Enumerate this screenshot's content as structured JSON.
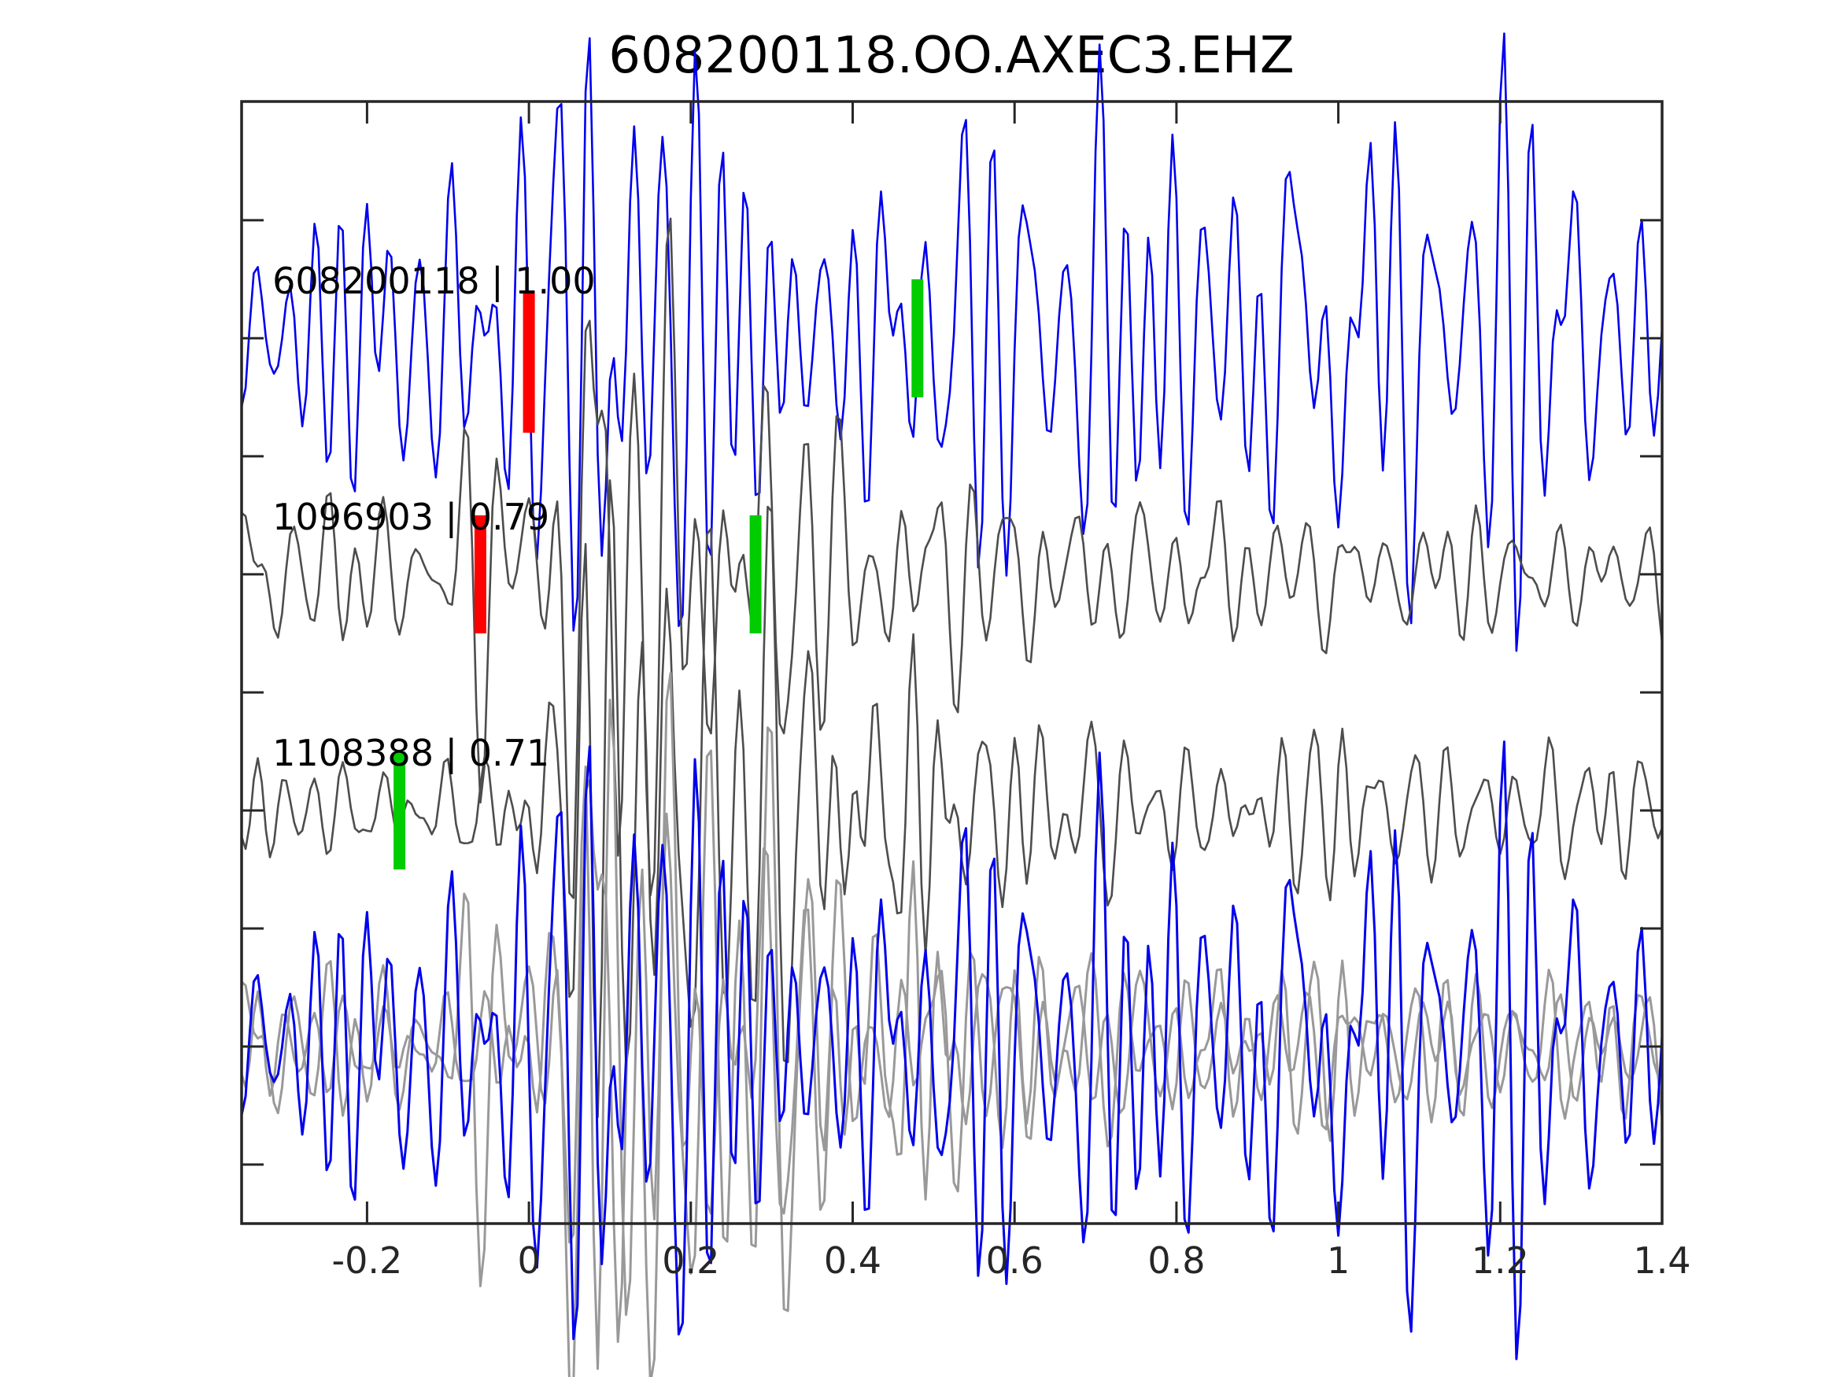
{
  "title": "608200118.OO.AXEC3.EHZ",
  "colors": {
    "background": "#ffffff",
    "frame": "#262626",
    "template_trace": "#0000ee",
    "match_trace": "#4d4d4d",
    "overlay_gray": "#999999",
    "pick_red": "#ff0000",
    "pick_green": "#00cc00",
    "text": "#000000"
  },
  "chart_data": {
    "type": "line",
    "title": "608200118.OO.AXEC3.EHZ",
    "xlabel": "",
    "ylabel": "",
    "grid": false,
    "legend": "none",
    "xlim": [
      -0.355,
      1.4
    ],
    "ylim": [
      0.25,
      5.003
    ],
    "x_ticks": [
      -0.2,
      0,
      0.2,
      0.4,
      0.6,
      0.8,
      1,
      1.2,
      1.4
    ],
    "x_tick_labels": [
      "-0.2",
      "0",
      "0.2",
      "0.4",
      "0.6",
      "0.8",
      "1",
      "1.2",
      "1.4"
    ],
    "y_ticks": [
      0.5,
      1,
      1.5,
      2,
      2.5,
      3,
      3.5,
      4,
      4.5
    ],
    "y_tick_labels": [
      "",
      "",
      "",
      "",
      "",
      "",
      "",
      "",
      ""
    ],
    "label_x": -0.317,
    "label_dy": 0.243,
    "traces": [
      {
        "id": "608200118",
        "label": "608200118 | 1.00",
        "correlation": 1.0,
        "color": "#0000ee",
        "center_y": 4,
        "seed": 101,
        "dt": 0.005,
        "freq_band": [
          7,
          46
        ],
        "freq_center": 27,
        "envelope": [
          [
            -0.36,
            0.26
          ],
          [
            -0.05,
            0.28
          ],
          [
            0.02,
            0.45
          ],
          [
            0.07,
            0.62
          ],
          [
            0.16,
            0.5
          ],
          [
            0.3,
            0.38
          ],
          [
            0.55,
            0.33
          ],
          [
            0.8,
            0.4
          ],
          [
            1.1,
            0.37
          ],
          [
            1.4,
            0.35
          ]
        ],
        "picks": [
          {
            "kind": "pick-red",
            "color": "#ff0000",
            "t": 0.0,
            "y_range": [
              3.6,
              4.2
            ]
          },
          {
            "kind": "pick-green",
            "color": "#00cc00",
            "t": 0.48,
            "y_range": [
              3.75,
              4.25
            ]
          }
        ]
      },
      {
        "id": "1096903",
        "label": "1096903 | 0.79",
        "correlation": 0.79,
        "color": "#4d4d4d",
        "center_y": 3,
        "seed": 202,
        "dt": 0.005,
        "freq_band": [
          6,
          42
        ],
        "freq_center": 24,
        "envelope": [
          [
            -0.36,
            0.12
          ],
          [
            -0.1,
            0.13
          ],
          [
            -0.04,
            0.3
          ],
          [
            0.05,
            0.55
          ],
          [
            0.12,
            0.52
          ],
          [
            0.25,
            0.4
          ],
          [
            0.4,
            0.28
          ],
          [
            0.6,
            0.18
          ],
          [
            0.8,
            0.13
          ],
          [
            1.1,
            0.1
          ],
          [
            1.4,
            0.09
          ]
        ],
        "picks": [
          {
            "kind": "pick-red",
            "color": "#ff0000",
            "t": -0.06,
            "y_range": [
              2.75,
              3.25
            ]
          },
          {
            "kind": "pick-green",
            "color": "#00cc00",
            "t": 0.28,
            "y_range": [
              2.75,
              3.25
            ]
          }
        ]
      },
      {
        "id": "1108388",
        "label": "1108388 | 0.71",
        "correlation": 0.71,
        "color": "#4d4d4d",
        "center_y": 2,
        "seed": 303,
        "dt": 0.005,
        "freq_band": [
          6,
          42
        ],
        "freq_center": 25,
        "envelope": [
          [
            -0.36,
            0.08
          ],
          [
            -0.05,
            0.09
          ],
          [
            0.03,
            0.3
          ],
          [
            0.1,
            0.6
          ],
          [
            0.2,
            0.5
          ],
          [
            0.35,
            0.33
          ],
          [
            0.55,
            0.22
          ],
          [
            0.8,
            0.15
          ],
          [
            1.1,
            0.12
          ],
          [
            1.4,
            0.1
          ]
        ],
        "picks": [
          {
            "kind": "pick-green",
            "color": "#00cc00",
            "t": -0.16,
            "y_range": [
              1.75,
              2.25
            ]
          }
        ]
      }
    ],
    "overlay": {
      "center_y": 1,
      "components": [
        {
          "ref": "1096903",
          "color": "#999999",
          "gain": 1.05
        },
        {
          "ref": "1108388",
          "color": "#999999",
          "gain": 1.05
        },
        {
          "ref": "608200118",
          "color": "#0000ee",
          "gain": 1.0
        }
      ]
    }
  }
}
